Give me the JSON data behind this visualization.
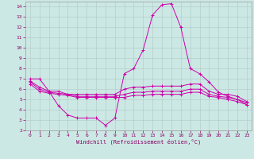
{
  "title": "",
  "xlabel": "Windchill (Refroidissement éolien,°C)",
  "background_color": "#cce8e4",
  "grid_color": "#b0c8c4",
  "line_color": "#cc00aa",
  "xlim": [
    -0.5,
    23.5
  ],
  "ylim": [
    2,
    14.5
  ],
  "x_ticks": [
    0,
    1,
    2,
    3,
    4,
    5,
    6,
    7,
    8,
    9,
    10,
    11,
    12,
    13,
    14,
    15,
    16,
    17,
    18,
    19,
    20,
    21,
    22,
    23
  ],
  "y_ticks": [
    2,
    3,
    4,
    5,
    6,
    7,
    8,
    9,
    10,
    11,
    12,
    13,
    14
  ],
  "series": [
    {
      "x": [
        0,
        1,
        2,
        3,
        4,
        5,
        6,
        7,
        8,
        9,
        10,
        11,
        12,
        13,
        14,
        15,
        16,
        17,
        18,
        19,
        20,
        21,
        22,
        23
      ],
      "y": [
        7.0,
        7.0,
        5.8,
        4.4,
        3.5,
        3.2,
        3.2,
        3.2,
        2.5,
        3.2,
        7.5,
        8.0,
        9.8,
        13.2,
        14.2,
        14.3,
        12.0,
        8.0,
        7.5,
        6.7,
        5.7,
        5.3,
        5.0,
        4.5
      ]
    },
    {
      "x": [
        0,
        1,
        2,
        3,
        4,
        5,
        6,
        7,
        8,
        9,
        10,
        11,
        12,
        13,
        14,
        15,
        16,
        17,
        18,
        19,
        20,
        21,
        22,
        23
      ],
      "y": [
        6.8,
        6.2,
        5.8,
        5.8,
        5.5,
        5.5,
        5.5,
        5.5,
        5.5,
        5.5,
        6.0,
        6.2,
        6.2,
        6.3,
        6.3,
        6.3,
        6.3,
        6.5,
        6.5,
        5.8,
        5.5,
        5.5,
        5.3,
        4.8
      ]
    },
    {
      "x": [
        0,
        1,
        2,
        3,
        4,
        5,
        6,
        7,
        8,
        9,
        10,
        11,
        12,
        13,
        14,
        15,
        16,
        17,
        18,
        19,
        20,
        21,
        22,
        23
      ],
      "y": [
        6.7,
        6.0,
        5.7,
        5.6,
        5.5,
        5.3,
        5.3,
        5.3,
        5.3,
        5.3,
        5.5,
        5.7,
        5.7,
        5.8,
        5.8,
        5.8,
        5.8,
        6.0,
        6.0,
        5.5,
        5.3,
        5.2,
        5.0,
        4.7
      ]
    },
    {
      "x": [
        0,
        1,
        2,
        3,
        4,
        5,
        6,
        7,
        8,
        9,
        10,
        11,
        12,
        13,
        14,
        15,
        16,
        17,
        18,
        19,
        20,
        21,
        22,
        23
      ],
      "y": [
        6.5,
        5.8,
        5.6,
        5.5,
        5.4,
        5.2,
        5.2,
        5.2,
        5.2,
        5.2,
        5.2,
        5.4,
        5.4,
        5.5,
        5.5,
        5.5,
        5.5,
        5.7,
        5.7,
        5.3,
        5.2,
        5.0,
        4.8,
        4.5
      ]
    }
  ]
}
